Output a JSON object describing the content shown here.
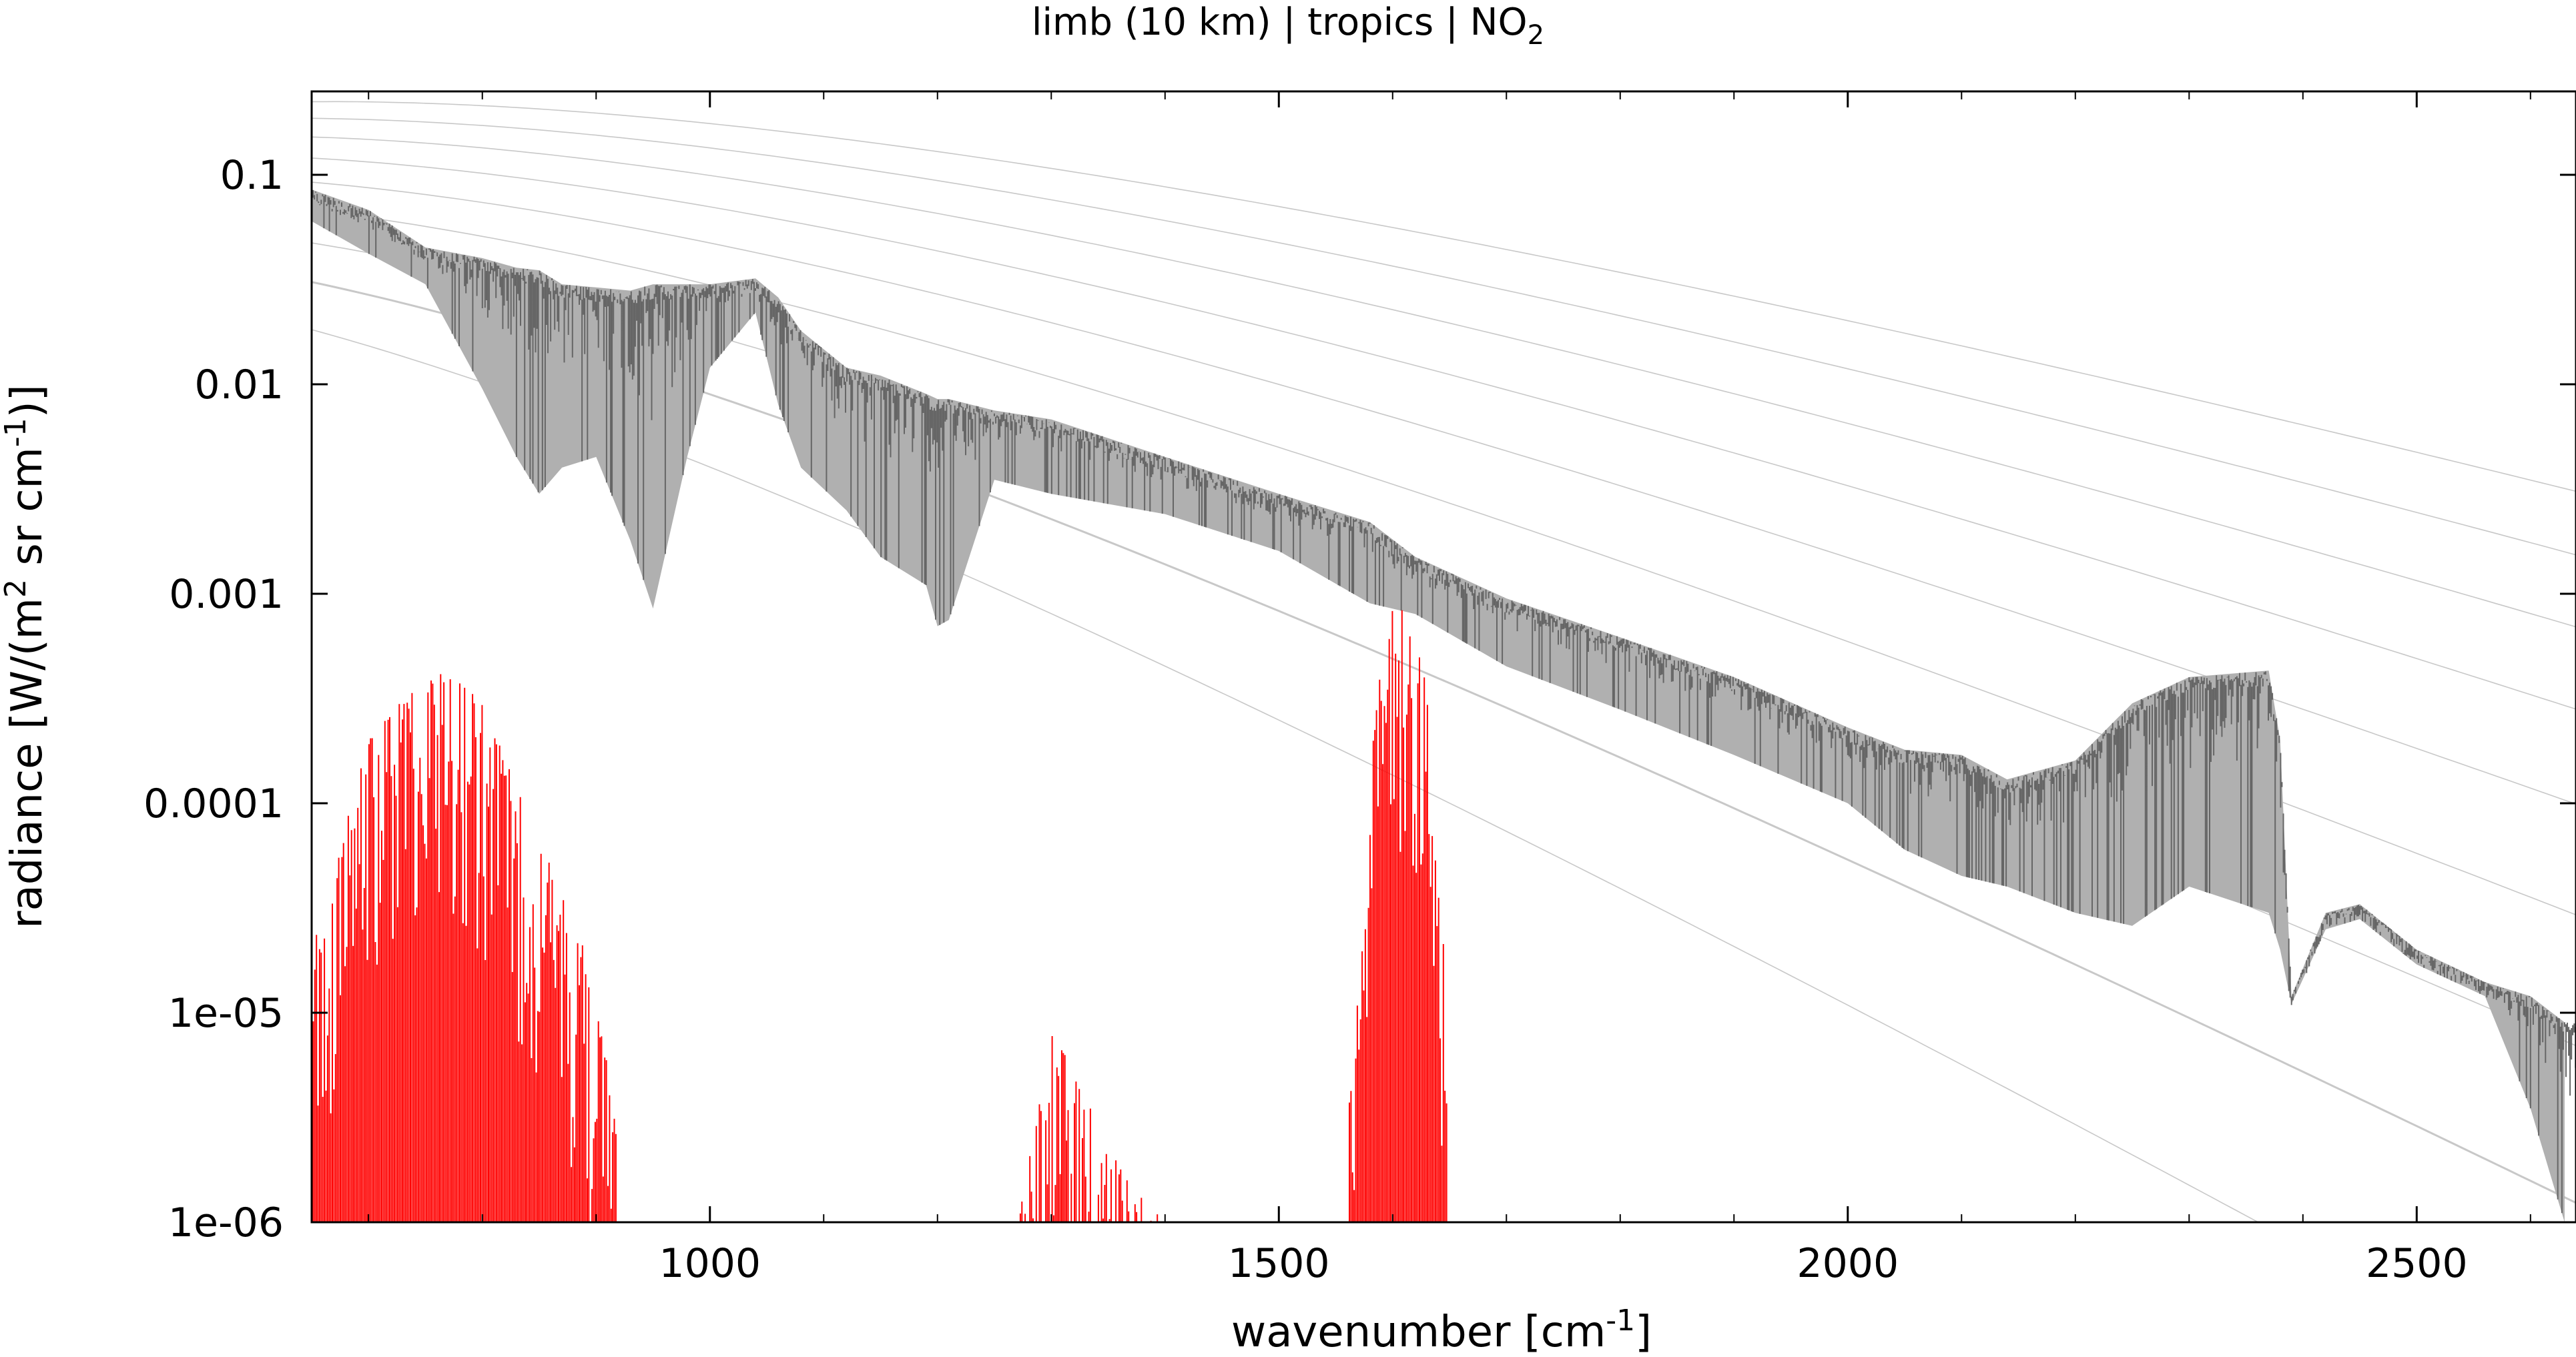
{
  "chart_data": {
    "type": "line",
    "title": "limb (10 km) | tropics | NO",
    "title_sub": "2",
    "xlabel": "wavenumber [cm",
    "xlabel_sup": "-1",
    "xlabel_end": "]",
    "ylabel": {
      "a": "radiance [W/(m",
      "a_sup": "2",
      "b": " sr cm",
      "b_sup": "-1",
      "c": ")]"
    },
    "xlim": [
      650,
      2640
    ],
    "ylim": [
      1e-06,
      0.25
    ],
    "y_scale": "log",
    "grid": false,
    "x_ticks": [
      {
        "value": 1000,
        "label": "1000"
      },
      {
        "value": 1500,
        "label": "1500"
      },
      {
        "value": 2000,
        "label": "2000"
      },
      {
        "value": 2500,
        "label": "2500"
      }
    ],
    "y_ticks": [
      {
        "value": 0.1,
        "label": "0.1"
      },
      {
        "value": 0.01,
        "label": "0.01"
      },
      {
        "value": 0.001,
        "label": "0.001"
      },
      {
        "value": 0.0001,
        "label": "0.0001"
      },
      {
        "value": 1e-05,
        "label": "1e-05"
      },
      {
        "value": 1e-06,
        "label": "1e-06"
      }
    ],
    "reference_curves": {
      "kind": "Planck radiance",
      "temperatures_K": [
        180,
        200,
        220,
        240,
        260,
        280,
        300,
        320,
        340
      ],
      "highlight_temperature_K": 200,
      "color": "#c8c8c8"
    },
    "series": [
      {
        "color": "#666666",
        "light_color": "#b0b0b0",
        "x": [
          650,
          700,
          750,
          800,
          830,
          850,
          870,
          900,
          930,
          950,
          980,
          1000,
          1040,
          1060,
          1080,
          1120,
          1150,
          1190,
          1200,
          1210,
          1250,
          1300,
          1400,
          1500,
          1580,
          1620,
          1700,
          1800,
          1900,
          2000,
          2050,
          2100,
          2140,
          2200,
          2250,
          2300,
          2370,
          2380,
          2390,
          2420,
          2450,
          2500,
          2560,
          2600,
          2630
        ],
        "y_top": [
          0.085,
          0.068,
          0.045,
          0.04,
          0.036,
          0.035,
          0.03,
          0.029,
          0.028,
          0.03,
          0.03,
          0.03,
          0.032,
          0.026,
          0.018,
          0.012,
          0.011,
          0.009,
          0.0085,
          0.0085,
          0.0075,
          0.0068,
          0.0045,
          0.003,
          0.0022,
          0.0015,
          0.00095,
          0.00062,
          0.0004,
          0.00023,
          0.00018,
          0.00017,
          0.00013,
          0.00016,
          0.0003,
          0.0004,
          0.00043,
          0.0002,
          1.2e-05,
          3e-05,
          3.3e-05,
          2e-05,
          1.4e-05,
          1.2e-05,
          9e-06
        ],
        "y_low": [
          0.06,
          0.042,
          0.03,
          0.0095,
          0.0045,
          0.003,
          0.004,
          0.0045,
          0.0018,
          0.00085,
          0.0045,
          0.012,
          0.022,
          0.008,
          0.004,
          0.0025,
          0.0015,
          0.0011,
          0.0007,
          0.00075,
          0.0035,
          0.003,
          0.0024,
          0.0016,
          0.0009,
          0.0008,
          0.00045,
          0.00028,
          0.00017,
          0.0001,
          6e-05,
          4.5e-05,
          4e-05,
          3e-05,
          2.6e-05,
          4e-05,
          3e-05,
          2e-05,
          1.1e-05,
          2.5e-05,
          2.8e-05,
          1.7e-05,
          1.2e-05,
          3.5e-06,
          1e-06
        ]
      },
      {
        "color": "#ff0000",
        "bands": [
          {
            "x": [
              650,
              700,
              740,
              770,
              800,
              830,
              860,
              890,
              920,
              930
            ],
            "y_top": [
              2e-05,
              0.0002,
              0.0004,
              0.00045,
              0.0003,
              0.00012,
              5e-05,
              2e-05,
              3e-06,
              1e-06
            ]
          },
          {
            "x": [
              1270,
              1290,
              1300,
              1315,
              1340,
              1370,
              1400
            ],
            "y_top": [
              1e-06,
              4e-06,
              8e-06,
              6e-06,
              3e-06,
              1.5e-06,
              1e-06
            ]
          },
          {
            "x": [
              1555,
              1570,
              1585,
              1600,
              1615,
              1630,
              1645,
              1650
            ],
            "y_top": [
              1e-06,
              3e-05,
              0.0003,
              0.0009,
              0.0008,
              0.0004,
              2e-05,
              1e-06
            ]
          }
        ]
      }
    ]
  }
}
